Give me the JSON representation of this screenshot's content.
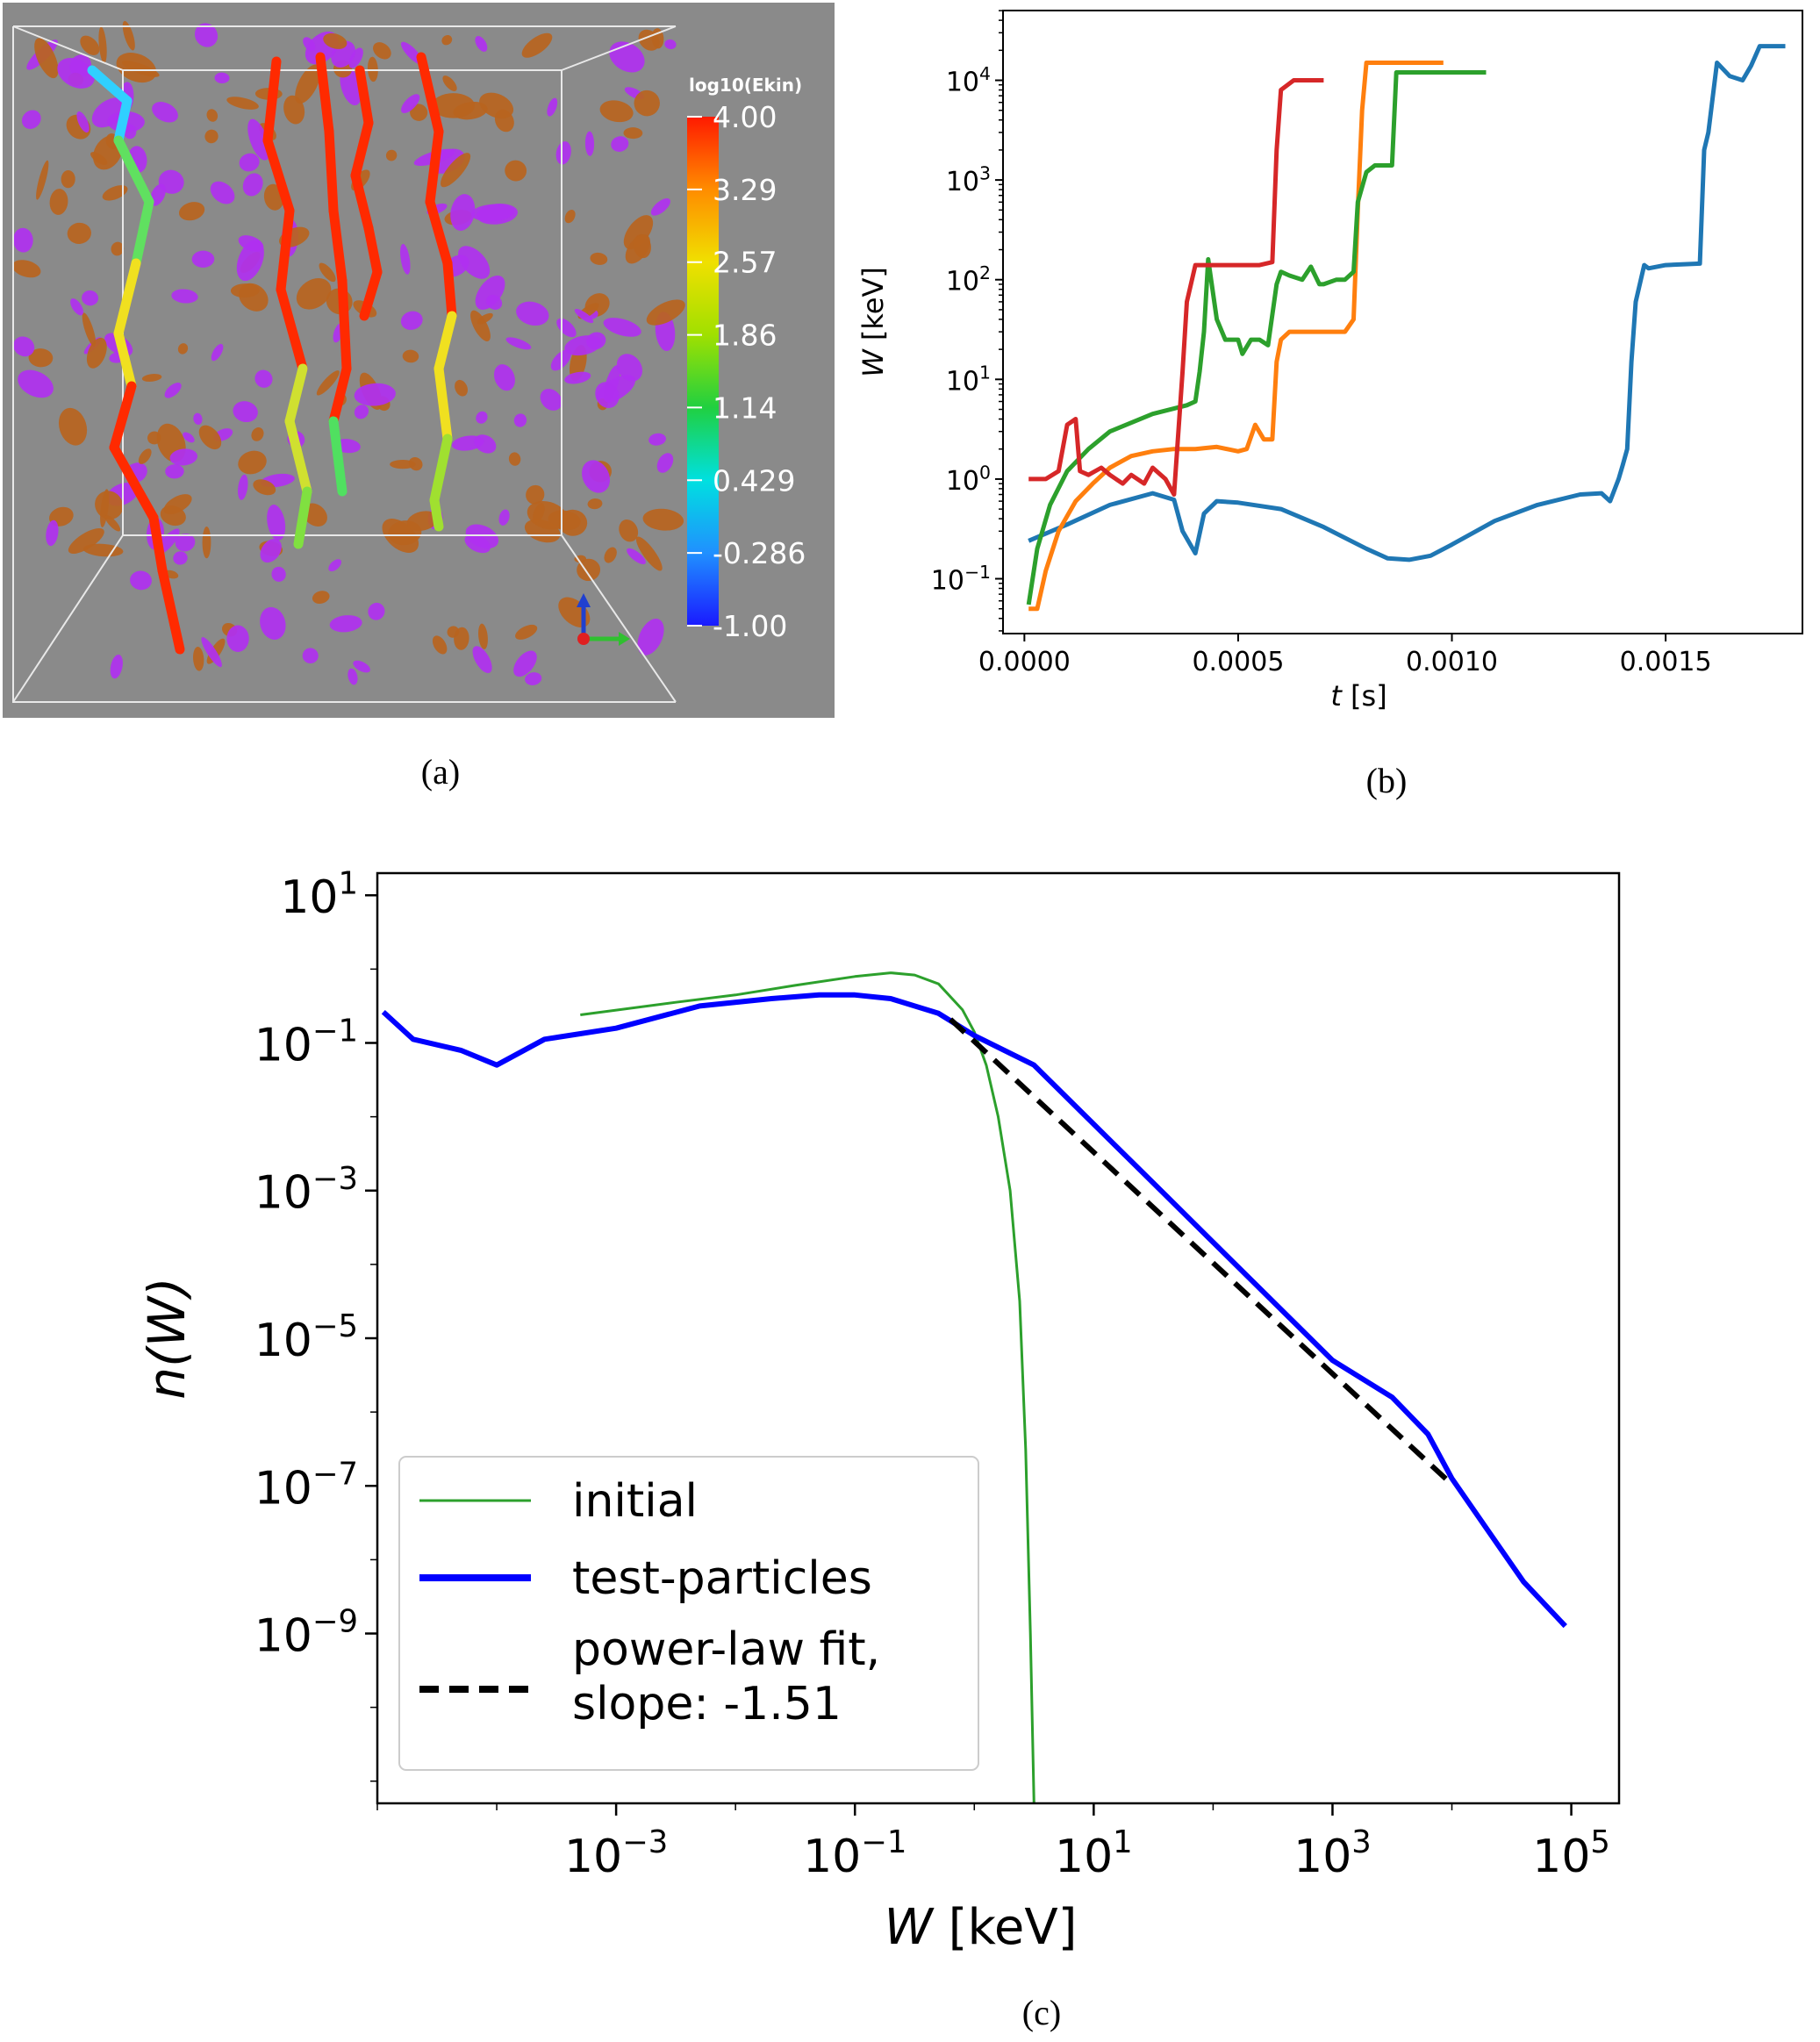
{
  "captions": {
    "a": "(a)",
    "b": "(b)",
    "c": "(c)"
  },
  "panel_a": {
    "colorbar_title": "log10(Ekin)",
    "colorbar_ticks": [
      "4.00",
      "3.29",
      "2.57",
      "1.86",
      "1.14",
      "0.429",
      "-0.286",
      "-1.00"
    ],
    "colorbar_colors": [
      "#ff1a00",
      "#ff8c00",
      "#f0e000",
      "#a0e000",
      "#20d040",
      "#00e0e0",
      "#2090ff",
      "#1a1aff"
    ],
    "background_color": "#8a8a8a",
    "structure_colors": [
      "#b8641e",
      "#b030f0"
    ]
  },
  "chart_data": [
    {
      "type": "line",
      "panel": "b",
      "xlabel_italic": "t",
      "xlabel_rest": " [s]",
      "ylabel_italic": "W",
      "ylabel_rest": " [keV]",
      "xlim": [
        -5e-05,
        0.00182
      ],
      "ylim_log10": [
        -1.55,
        4.7
      ],
      "x_ticks": [
        0.0,
        0.0005,
        0.001,
        0.0015
      ],
      "x_tick_labels": [
        "0.0000",
        "0.0005",
        "0.0010",
        "0.0015"
      ],
      "y_ticks_log10": [
        -1,
        0,
        1,
        2,
        3,
        4
      ],
      "y_tick_labels": [
        [
          "10",
          "−1"
        ],
        [
          "10",
          "0"
        ],
        [
          "10",
          "1"
        ],
        [
          "10",
          "2"
        ],
        [
          "10",
          "3"
        ],
        [
          "10",
          "4"
        ]
      ],
      "series": [
        {
          "color": "#1f77b4",
          "points": [
            [
              1e-05,
              0.24
            ],
            [
              0.0001,
              0.35
            ],
            [
              0.0002,
              0.55
            ],
            [
              0.0003,
              0.72
            ],
            [
              0.00035,
              0.62
            ],
            [
              0.00037,
              0.3
            ],
            [
              0.0004,
              0.18
            ],
            [
              0.00042,
              0.45
            ],
            [
              0.00045,
              0.6
            ],
            [
              0.0005,
              0.58
            ],
            [
              0.0006,
              0.5
            ],
            [
              0.0007,
              0.33
            ],
            [
              0.0008,
              0.2
            ],
            [
              0.00085,
              0.16
            ],
            [
              0.0009,
              0.155
            ],
            [
              0.00095,
              0.17
            ],
            [
              0.001,
              0.22
            ],
            [
              0.0011,
              0.38
            ],
            [
              0.0012,
              0.55
            ],
            [
              0.0013,
              0.7
            ],
            [
              0.00135,
              0.72
            ],
            [
              0.00137,
              0.6
            ],
            [
              0.00139,
              1.0
            ],
            [
              0.0014,
              1.4
            ],
            [
              0.00141,
              2.0
            ],
            [
              0.00142,
              15
            ],
            [
              0.00143,
              60
            ],
            [
              0.00145,
              140
            ],
            [
              0.00146,
              130
            ],
            [
              0.0015,
              140
            ],
            [
              0.00158,
              145
            ],
            [
              0.00159,
              2000
            ],
            [
              0.0016,
              3000
            ],
            [
              0.00162,
              15000
            ],
            [
              0.00165,
              11000
            ],
            [
              0.00168,
              10000
            ],
            [
              0.0017,
              14000
            ],
            [
              0.00172,
              22000
            ],
            [
              0.00178,
              22000
            ]
          ]
        },
        {
          "color": "#ff7f0e",
          "points": [
            [
              1e-05,
              0.05
            ],
            [
              3e-05,
              0.05
            ],
            [
              5e-05,
              0.12
            ],
            [
              8e-05,
              0.3
            ],
            [
              0.00012,
              0.6
            ],
            [
              0.00016,
              0.9
            ],
            [
              0.0002,
              1.3
            ],
            [
              0.00025,
              1.7
            ],
            [
              0.0003,
              1.9
            ],
            [
              0.00035,
              2.0
            ],
            [
              0.0004,
              2.0
            ],
            [
              0.00045,
              2.1
            ],
            [
              0.0005,
              1.9
            ],
            [
              0.00052,
              2.0
            ],
            [
              0.00054,
              3.5
            ],
            [
              0.00056,
              2.5
            ],
            [
              0.00058,
              2.5
            ],
            [
              0.00059,
              15
            ],
            [
              0.0006,
              25
            ],
            [
              0.00062,
              30
            ],
            [
              0.0007,
              30
            ],
            [
              0.00075,
              30
            ],
            [
              0.00077,
              40
            ],
            [
              0.00078,
              500
            ],
            [
              0.00079,
              5000
            ],
            [
              0.0008,
              15000
            ],
            [
              0.00098,
              15000
            ]
          ]
        },
        {
          "color": "#2ca02c",
          "points": [
            [
              1e-05,
              0.055
            ],
            [
              3e-05,
              0.2
            ],
            [
              6e-05,
              0.55
            ],
            [
              0.0001,
              1.2
            ],
            [
              0.00015,
              2.0
            ],
            [
              0.0002,
              3.0
            ],
            [
              0.0003,
              4.5
            ],
            [
              0.00038,
              5.5
            ],
            [
              0.0004,
              6.0
            ],
            [
              0.00041,
              12
            ],
            [
              0.00042,
              30
            ],
            [
              0.00043,
              160
            ],
            [
              0.00045,
              40
            ],
            [
              0.00047,
              25
            ],
            [
              0.0005,
              25
            ],
            [
              0.00051,
              18
            ],
            [
              0.00053,
              25
            ],
            [
              0.00055,
              25
            ],
            [
              0.00057,
              22
            ],
            [
              0.00059,
              90
            ],
            [
              0.0006,
              120
            ],
            [
              0.00062,
              110
            ],
            [
              0.00065,
              100
            ],
            [
              0.00067,
              135
            ],
            [
              0.00069,
              90
            ],
            [
              0.0007,
              90
            ],
            [
              0.00073,
              100
            ],
            [
              0.00075,
              100
            ],
            [
              0.00077,
              120
            ],
            [
              0.00078,
              600
            ],
            [
              0.0008,
              1200
            ],
            [
              0.00082,
              1400
            ],
            [
              0.00086,
              1400
            ],
            [
              0.00087,
              12000
            ],
            [
              0.00108,
              12000
            ]
          ]
        },
        {
          "color": "#d62728",
          "points": [
            [
              1e-05,
              1.0
            ],
            [
              5e-05,
              1.0
            ],
            [
              8e-05,
              1.2
            ],
            [
              0.0001,
              3.5
            ],
            [
              0.00012,
              4.0
            ],
            [
              0.00013,
              1.2
            ],
            [
              0.00015,
              1.1
            ],
            [
              0.00018,
              1.3
            ],
            [
              0.0002,
              1.1
            ],
            [
              0.00023,
              0.9
            ],
            [
              0.00025,
              1.1
            ],
            [
              0.00028,
              0.9
            ],
            [
              0.0003,
              1.3
            ],
            [
              0.00033,
              1.0
            ],
            [
              0.00035,
              0.7
            ],
            [
              0.00037,
              12
            ],
            [
              0.00038,
              60
            ],
            [
              0.0004,
              140
            ],
            [
              0.00045,
              140
            ],
            [
              0.0005,
              140
            ],
            [
              0.00055,
              140
            ],
            [
              0.00058,
              150
            ],
            [
              0.00059,
              2000
            ],
            [
              0.0006,
              8000
            ],
            [
              0.00063,
              10000
            ],
            [
              0.0007,
              10000
            ]
          ]
        }
      ]
    },
    {
      "type": "line",
      "panel": "c",
      "xlabel_italic": "W",
      "xlabel_rest": " [keV]",
      "ylabel_text": "n(W)",
      "xlim_log10": [
        -5.0,
        5.4
      ],
      "ylim_log10": [
        -11.3,
        1.3
      ],
      "x_ticks_log10": [
        -3,
        -1,
        1,
        3,
        5
      ],
      "x_tick_labels": [
        [
          "10",
          "−3"
        ],
        [
          "10",
          "−1"
        ],
        [
          "10",
          "1"
        ],
        [
          "10",
          "3"
        ],
        [
          "10",
          "5"
        ]
      ],
      "y_ticks_log10": [
        -9,
        -7,
        -5,
        -3,
        -1,
        1
      ],
      "y_tick_labels": [
        [
          "10",
          "−9"
        ],
        [
          "10",
          "−7"
        ],
        [
          "10",
          "−5"
        ],
        [
          "10",
          "−3"
        ],
        [
          "10",
          "−1"
        ],
        [
          "10",
          "1"
        ]
      ],
      "series": [
        {
          "name": "initial",
          "color": "#2ca02c",
          "width": 3,
          "dash": "",
          "points_log10": [
            [
              -3.3,
              -0.62
            ],
            [
              -2.5,
              -0.45
            ],
            [
              -2.0,
              -0.35
            ],
            [
              -1.5,
              -0.22
            ],
            [
              -1.0,
              -0.1
            ],
            [
              -0.7,
              -0.05
            ],
            [
              -0.5,
              -0.08
            ],
            [
              -0.3,
              -0.2
            ],
            [
              -0.1,
              -0.55
            ],
            [
              0.0,
              -0.85
            ],
            [
              0.1,
              -1.3
            ],
            [
              0.2,
              -2.0
            ],
            [
              0.3,
              -3.0
            ],
            [
              0.38,
              -4.5
            ],
            [
              0.43,
              -6.5
            ],
            [
              0.47,
              -9.0
            ],
            [
              0.5,
              -11.3
            ]
          ]
        },
        {
          "name": "test-particles",
          "color": "#0000ff",
          "width": 6,
          "dash": "",
          "points_log10": [
            [
              -4.95,
              -0.58
            ],
            [
              -4.7,
              -0.95
            ],
            [
              -4.3,
              -1.1
            ],
            [
              -4.0,
              -1.3
            ],
            [
              -3.6,
              -0.95
            ],
            [
              -3.0,
              -0.8
            ],
            [
              -2.3,
              -0.5
            ],
            [
              -1.7,
              -0.4
            ],
            [
              -1.3,
              -0.35
            ],
            [
              -1.0,
              -0.35
            ],
            [
              -0.7,
              -0.4
            ],
            [
              -0.3,
              -0.6
            ],
            [
              0.0,
              -0.9
            ],
            [
              0.5,
              -1.3
            ],
            [
              1.0,
              -2.1
            ],
            [
              1.5,
              -2.9
            ],
            [
              2.0,
              -3.7
            ],
            [
              2.5,
              -4.5
            ],
            [
              3.0,
              -5.3
            ],
            [
              3.5,
              -5.8
            ],
            [
              3.8,
              -6.3
            ],
            [
              4.0,
              -6.9
            ],
            [
              4.3,
              -7.6
            ],
            [
              4.6,
              -8.3
            ],
            [
              4.95,
              -8.9
            ]
          ]
        },
        {
          "name": "power-law fit,\nslope: -1.51",
          "color": "#000000",
          "width": 6,
          "dash": "22 12",
          "points_log10": [
            [
              -0.2,
              -0.68
            ],
            [
              4.0,
              -6.98
            ]
          ]
        }
      ],
      "legend": {
        "position": "lower-left",
        "entries": [
          "initial",
          "test-particles",
          "power-law fit,",
          "slope: -1.51"
        ]
      }
    }
  ]
}
